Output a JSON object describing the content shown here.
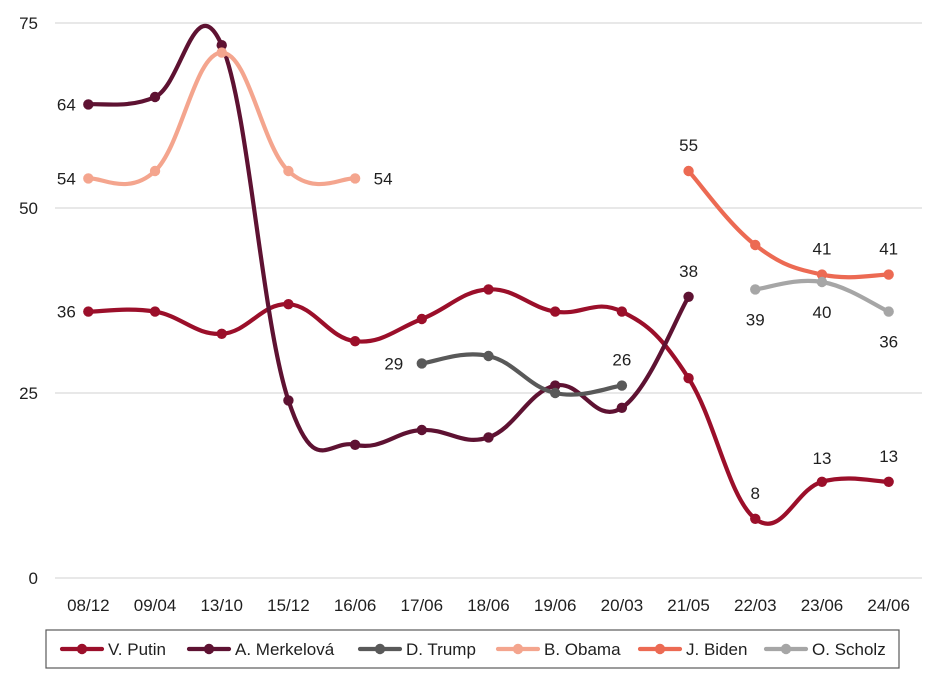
{
  "chart_data": {
    "type": "line",
    "categories": [
      "08/12",
      "09/04",
      "13/10",
      "15/12",
      "16/06",
      "17/06",
      "18/06",
      "19/06",
      "20/03",
      "21/05",
      "22/03",
      "23/06",
      "24/06"
    ],
    "ylim": [
      0,
      75
    ],
    "yticks": [
      0,
      25,
      50,
      75
    ],
    "grid": true,
    "legend_position": "bottom",
    "series": [
      {
        "name": "V. Putin",
        "color": "#9b0f2a",
        "values": [
          36,
          36,
          33,
          37,
          32,
          35,
          39,
          36,
          36,
          27,
          8,
          13,
          13
        ],
        "labels": {
          "0": "36",
          "10": "8",
          "11": "13",
          "12": "13"
        }
      },
      {
        "name": "A. Merkelová",
        "color": "#5e1232",
        "values": [
          64,
          65,
          72,
          24,
          18,
          20,
          19,
          26,
          23,
          38,
          null,
          null,
          null
        ],
        "labels": {
          "0": "64",
          "9": "38"
        }
      },
      {
        "name": "D. Trump",
        "color": "#595959",
        "values": [
          null,
          null,
          null,
          null,
          null,
          29,
          30,
          25,
          26,
          null,
          null,
          null,
          null
        ],
        "labels": {
          "5": "29",
          "8": "26"
        }
      },
      {
        "name": "B. Obama",
        "color": "#f4a58e",
        "values": [
          54,
          55,
          71,
          55,
          54,
          null,
          null,
          null,
          null,
          null,
          null,
          null,
          null
        ],
        "labels": {
          "0": "54",
          "4": "54"
        }
      },
      {
        "name": "J. Biden",
        "color": "#ec6a53",
        "values": [
          null,
          null,
          null,
          null,
          null,
          null,
          null,
          null,
          null,
          55,
          45,
          41,
          41
        ],
        "labels": {
          "9": "55",
          "11": "41",
          "12": "41"
        }
      },
      {
        "name": "O. Scholz",
        "color": "#a6a6a6",
        "values": [
          null,
          null,
          null,
          null,
          null,
          null,
          null,
          null,
          null,
          null,
          39,
          40,
          36
        ],
        "labels": {
          "10": "39",
          "11": "40",
          "12": "36"
        }
      }
    ]
  }
}
